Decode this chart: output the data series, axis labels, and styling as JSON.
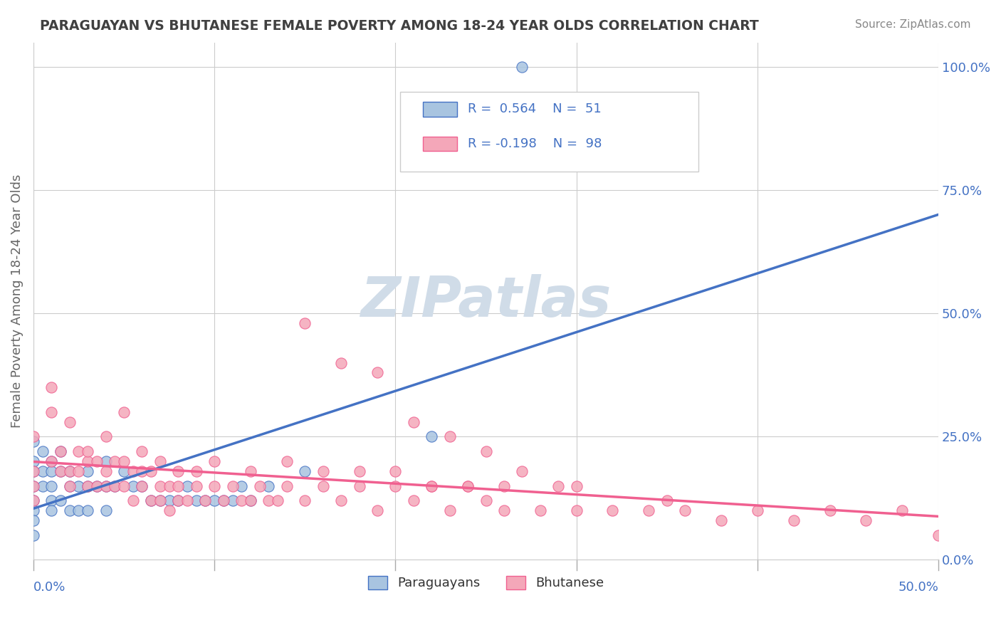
{
  "title": "PARAGUAYAN VS BHUTANESE FEMALE POVERTY AMONG 18-24 YEAR OLDS CORRELATION CHART",
  "source_text": "Source: ZipAtlas.com",
  "ylabel": "Female Poverty Among 18-24 Year Olds",
  "right_yticks": [
    "100.0%",
    "75.0%",
    "50.0%",
    "25.0%",
    "0.0%"
  ],
  "right_ytick_vals": [
    1.0,
    0.75,
    0.5,
    0.25,
    0.0
  ],
  "color_paraguayan": "#a8c4e0",
  "color_bhutanese": "#f4a7b9",
  "color_line_paraguayan": "#4472c4",
  "color_line_bhutanese": "#f06090",
  "watermark_color": "#d0dce8",
  "title_color": "#404040",
  "axis_color": "#4472c4",
  "legend_text_color": "#4472c4",
  "paraguayan_points_x": [
    0.0,
    0.0,
    0.0,
    0.0,
    0.0,
    0.0,
    0.0,
    0.0,
    0.005,
    0.005,
    0.005,
    0.01,
    0.01,
    0.01,
    0.01,
    0.01,
    0.015,
    0.015,
    0.015,
    0.02,
    0.02,
    0.02,
    0.025,
    0.025,
    0.03,
    0.03,
    0.03,
    0.035,
    0.04,
    0.04,
    0.04,
    0.045,
    0.05,
    0.055,
    0.06,
    0.065,
    0.07,
    0.075,
    0.08,
    0.085,
    0.09,
    0.095,
    0.1,
    0.105,
    0.11,
    0.115,
    0.12,
    0.13,
    0.15,
    0.22,
    0.27
  ],
  "paraguayan_points_y": [
    0.2,
    0.24,
    0.18,
    0.15,
    0.12,
    0.1,
    0.08,
    0.05,
    0.22,
    0.18,
    0.15,
    0.2,
    0.18,
    0.15,
    0.12,
    0.1,
    0.22,
    0.18,
    0.12,
    0.18,
    0.15,
    0.1,
    0.15,
    0.1,
    0.18,
    0.15,
    0.1,
    0.15,
    0.2,
    0.15,
    0.1,
    0.15,
    0.18,
    0.15,
    0.15,
    0.12,
    0.12,
    0.12,
    0.12,
    0.15,
    0.12,
    0.12,
    0.12,
    0.12,
    0.12,
    0.15,
    0.12,
    0.15,
    0.18,
    0.25,
    1.0
  ],
  "bhutanese_points_x": [
    0.0,
    0.0,
    0.0,
    0.01,
    0.01,
    0.015,
    0.015,
    0.02,
    0.02,
    0.025,
    0.025,
    0.03,
    0.03,
    0.035,
    0.035,
    0.04,
    0.04,
    0.045,
    0.045,
    0.05,
    0.05,
    0.055,
    0.055,
    0.06,
    0.06,
    0.065,
    0.065,
    0.07,
    0.07,
    0.075,
    0.075,
    0.08,
    0.08,
    0.085,
    0.09,
    0.095,
    0.1,
    0.105,
    0.11,
    0.115,
    0.12,
    0.125,
    0.13,
    0.135,
    0.14,
    0.15,
    0.16,
    0.17,
    0.18,
    0.19,
    0.2,
    0.21,
    0.22,
    0.23,
    0.24,
    0.25,
    0.26,
    0.28,
    0.3,
    0.32,
    0.34,
    0.36,
    0.38,
    0.4,
    0.42,
    0.44,
    0.46,
    0.48,
    0.5,
    0.0,
    0.01,
    0.02,
    0.03,
    0.04,
    0.05,
    0.06,
    0.07,
    0.08,
    0.09,
    0.1,
    0.12,
    0.14,
    0.16,
    0.18,
    0.2,
    0.22,
    0.24,
    0.26,
    0.3,
    0.35,
    0.15,
    0.17,
    0.19,
    0.21,
    0.23,
    0.25,
    0.27,
    0.29
  ],
  "bhutanese_points_y": [
    0.18,
    0.15,
    0.12,
    0.3,
    0.2,
    0.22,
    0.18,
    0.18,
    0.15,
    0.22,
    0.18,
    0.2,
    0.15,
    0.2,
    0.15,
    0.18,
    0.15,
    0.2,
    0.15,
    0.2,
    0.15,
    0.18,
    0.12,
    0.18,
    0.15,
    0.18,
    0.12,
    0.15,
    0.12,
    0.15,
    0.1,
    0.15,
    0.12,
    0.12,
    0.15,
    0.12,
    0.15,
    0.12,
    0.15,
    0.12,
    0.12,
    0.15,
    0.12,
    0.12,
    0.15,
    0.12,
    0.15,
    0.12,
    0.15,
    0.1,
    0.15,
    0.12,
    0.15,
    0.1,
    0.15,
    0.12,
    0.1,
    0.1,
    0.1,
    0.1,
    0.1,
    0.1,
    0.08,
    0.1,
    0.08,
    0.1,
    0.08,
    0.1,
    0.05,
    0.25,
    0.35,
    0.28,
    0.22,
    0.25,
    0.3,
    0.22,
    0.2,
    0.18,
    0.18,
    0.2,
    0.18,
    0.2,
    0.18,
    0.18,
    0.18,
    0.15,
    0.15,
    0.15,
    0.15,
    0.12,
    0.48,
    0.4,
    0.38,
    0.28,
    0.25,
    0.22,
    0.18,
    0.15
  ],
  "xlim": [
    0.0,
    0.5
  ],
  "ylim": [
    0.0,
    1.05
  ],
  "grid_x_vals": [
    0.0,
    0.1,
    0.2,
    0.3,
    0.4,
    0.5
  ]
}
